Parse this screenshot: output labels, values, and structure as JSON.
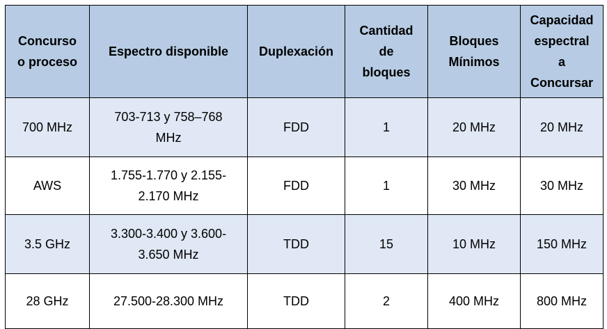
{
  "table": {
    "headers": [
      "Concurso\no proceso",
      "Espectro disponible",
      "Duplexación",
      "Cantidad\nde\nbloques",
      "Bloques\nMínimos",
      "Capacidad\nespectral\na\nConcursar"
    ],
    "rows": [
      [
        "700 MHz",
        "703-713 y 758–768\nMHz",
        "FDD",
        "1",
        "20 MHz",
        "20 MHz"
      ],
      [
        "AWS",
        "1.755-1.770 y 2.155-\n2.170 MHz",
        "FDD",
        "1",
        "30 MHz",
        "30 MHz"
      ],
      [
        "3.5 GHz",
        "3.300-3.400 y 3.600-\n3.650 MHz",
        "TDD",
        "15",
        "10 MHz",
        "150 MHz"
      ],
      [
        "28 GHz",
        "27.500-28.300 MHz",
        "TDD",
        "2",
        "400 MHz",
        "800 MHz"
      ]
    ]
  },
  "colors": {
    "header_bg": "#b7cce4",
    "shaded_row_bg": "#dfe8f4",
    "plain_row_bg": "#ffffff",
    "border": "#000000"
  }
}
